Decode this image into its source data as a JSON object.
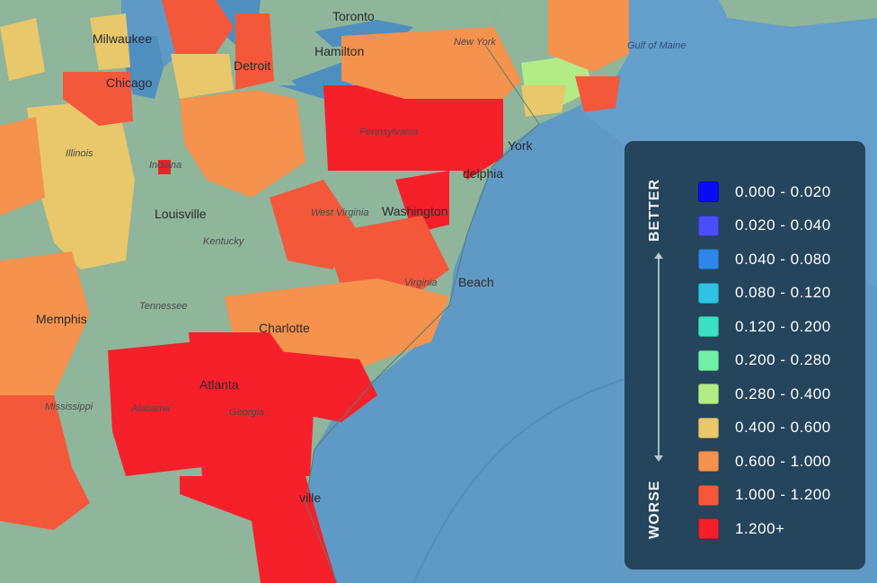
{
  "map": {
    "city_labels": {
      "toronto": "Toronto",
      "hamilton": "Hamilton",
      "milwaukee": "Milwaukee",
      "detroit": "Detroit",
      "chicago": "Chicago",
      "louisville": "Louisville",
      "memphis": "Memphis",
      "atlanta": "Atlanta",
      "charlotte": "Charlotte",
      "washington": "Washington",
      "philadelphia": "delphia",
      "newyork": "York",
      "virginia_beach": "Beach",
      "jacksonville": "ville",
      "indianapolis": "Indiana"
    },
    "region_labels": {
      "illinois": "Illinois",
      "tennessee": "Tennessee",
      "mississippi": "Mississippi",
      "alabama": "Alabama",
      "georgia": "Georgia",
      "west_virginia": "West Virginia",
      "kentucky": "Kentucky",
      "new_york_state": "New York",
      "pennsylvania": "Pennsylvania",
      "virginia": "Virginia"
    },
    "water_labels": {
      "gulf_of_maine": "Gulf of Maine"
    }
  },
  "legend": {
    "better_label": "BETTER",
    "worse_label": "WORSE",
    "items": [
      {
        "range": "0.000 - 0.020",
        "color": "#0a0af5"
      },
      {
        "range": "0.020 - 0.040",
        "color": "#4a4ef8"
      },
      {
        "range": "0.040 - 0.080",
        "color": "#2e86e8"
      },
      {
        "range": "0.080 - 0.120",
        "color": "#2ec3e0"
      },
      {
        "range": "0.120 - 0.200",
        "color": "#3de0c2"
      },
      {
        "range": "0.200 - 0.280",
        "color": "#72f0a6"
      },
      {
        "range": "0.280 - 0.400",
        "color": "#b3ec86"
      },
      {
        "range": "0.400 - 0.600",
        "color": "#e8c86a"
      },
      {
        "range": "0.600 - 1.000",
        "color": "#f4924e"
      },
      {
        "range": "1.000 - 1.200",
        "color": "#f4583a"
      },
      {
        "range": "1.200+",
        "color": "#f5202a"
      }
    ]
  }
}
